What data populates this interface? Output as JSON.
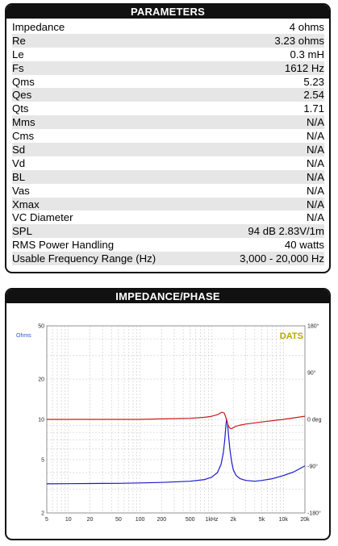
{
  "parameters": {
    "title": "PARAMETERS",
    "rows": [
      {
        "label": "Impedance",
        "value": "4 ohms"
      },
      {
        "label": "Re",
        "value": "3.23 ohms"
      },
      {
        "label": "Le",
        "value": "0.3 mH"
      },
      {
        "label": "Fs",
        "value": "1612 Hz"
      },
      {
        "label": "Qms",
        "value": "5.23"
      },
      {
        "label": "Qes",
        "value": "2.54"
      },
      {
        "label": "Qts",
        "value": "1.71"
      },
      {
        "label": "Mms",
        "value": "N/A"
      },
      {
        "label": "Cms",
        "value": "N/A"
      },
      {
        "label": "Sd",
        "value": "N/A"
      },
      {
        "label": "Vd",
        "value": "N/A"
      },
      {
        "label": "BL",
        "value": "N/A"
      },
      {
        "label": "Vas",
        "value": "N/A"
      },
      {
        "label": "Xmax",
        "value": "N/A"
      },
      {
        "label": "VC Diameter",
        "value": "N/A"
      },
      {
        "label": "SPL",
        "value": "94 dB 2.83V/1m"
      },
      {
        "label": "RMS Power Handling",
        "value": "40 watts"
      },
      {
        "label": "Usable Frequency Range (Hz)",
        "value": "3,000 - 20,000 Hz"
      }
    ]
  },
  "chart_panel": {
    "title": "IMPEDANCE/PHASE"
  },
  "chart_data": {
    "type": "line",
    "title": "",
    "brand_label": "DATS",
    "ylabel_left": "Ohms",
    "x_scale": "log",
    "xlim": [
      5,
      20000
    ],
    "y_scale": "log",
    "ylim": [
      2,
      50
    ],
    "y2lim": [
      -180,
      180
    ],
    "grid": true,
    "x_ticks": [
      {
        "v": 5,
        "t": "5"
      },
      {
        "v": 10,
        "t": "10"
      },
      {
        "v": 20,
        "t": "20"
      },
      {
        "v": 50,
        "t": "50"
      },
      {
        "v": 100,
        "t": "100"
      },
      {
        "v": 200,
        "t": "200"
      },
      {
        "v": 500,
        "t": "500"
      },
      {
        "v": 1000,
        "t": "1kHz"
      },
      {
        "v": 2000,
        "t": "2k"
      },
      {
        "v": 5000,
        "t": "5k"
      },
      {
        "v": 10000,
        "t": "10k"
      },
      {
        "v": 20000,
        "t": "20k"
      }
    ],
    "y_ticks": [
      {
        "v": 50,
        "t": "50"
      },
      {
        "v": 20,
        "t": "20"
      },
      {
        "v": 10,
        "t": "10"
      },
      {
        "v": 5,
        "t": "5"
      },
      {
        "v": 2,
        "t": "2"
      }
    ],
    "y2_ticks": [
      {
        "v": 180,
        "t": "180°"
      },
      {
        "v": 90,
        "t": "90°"
      },
      {
        "v": 0,
        "t": "0 deg"
      },
      {
        "v": -90,
        "t": "-90°"
      },
      {
        "v": -180,
        "t": "-180°"
      }
    ],
    "colors": {
      "impedance": "#1a1acc",
      "phase": "#cc1a1a",
      "brand": "#b8a800",
      "ylabel": "#3355cc"
    },
    "series": [
      {
        "key": "impedance",
        "axis": "left",
        "x": [
          5,
          10,
          20,
          50,
          100,
          200,
          500,
          800,
          1000,
          1200,
          1350,
          1450,
          1520,
          1570,
          1612,
          1660,
          1720,
          1800,
          1900,
          2000,
          2200,
          2500,
          3000,
          4000,
          5000,
          7000,
          10000,
          14000,
          20000
        ],
        "y": [
          3.3,
          3.31,
          3.32,
          3.33,
          3.35,
          3.38,
          3.45,
          3.55,
          3.7,
          4.0,
          4.6,
          5.6,
          7.0,
          8.6,
          10.0,
          9.4,
          7.6,
          5.9,
          4.8,
          4.2,
          3.8,
          3.6,
          3.5,
          3.45,
          3.5,
          3.6,
          3.8,
          4.05,
          4.5
        ]
      },
      {
        "key": "phase",
        "axis": "right",
        "x": [
          5,
          10,
          20,
          50,
          100,
          200,
          500,
          800,
          1000,
          1200,
          1400,
          1500,
          1612,
          1700,
          1800,
          1900,
          2000,
          2200,
          2500,
          3000,
          5000,
          10000,
          20000
        ],
        "y": [
          0,
          0,
          0,
          0,
          0,
          1,
          2,
          4,
          6,
          9,
          14,
          12,
          0,
          -12,
          -17,
          -18,
          -16,
          -13,
          -11,
          -9,
          -5,
          0,
          6
        ]
      }
    ]
  }
}
